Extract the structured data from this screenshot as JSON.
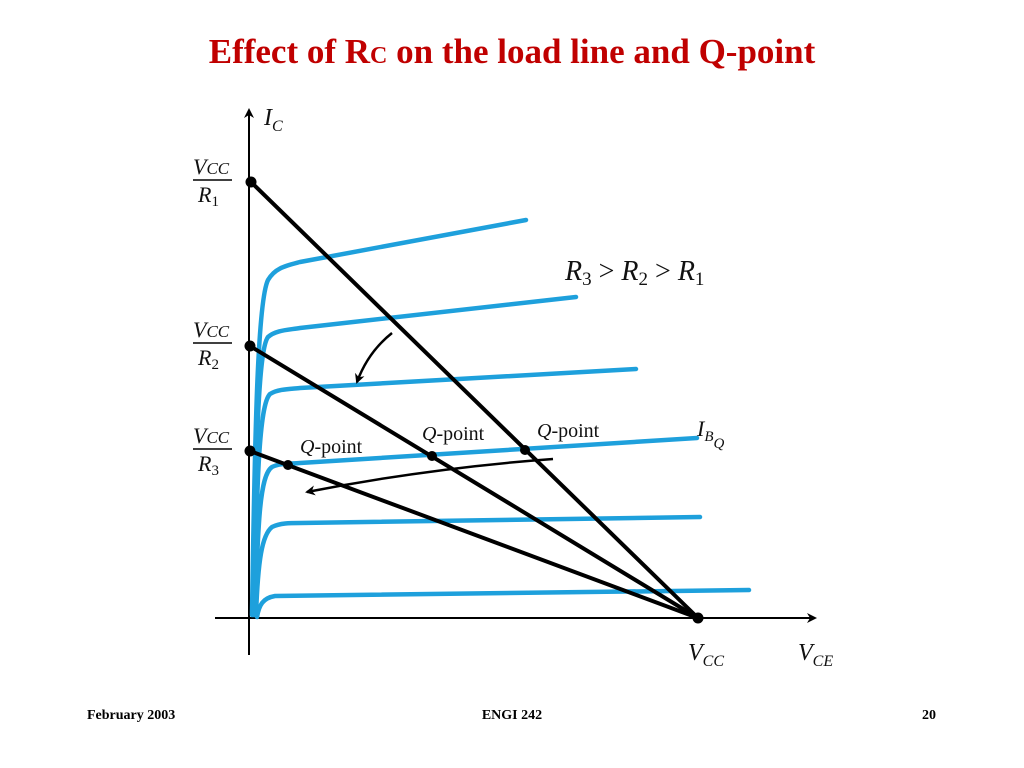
{
  "title": {
    "main_before": "Effect of R",
    "subscript": "C",
    "main_after": " on the load line and Q-point"
  },
  "diagram": {
    "y_axis_label": "I",
    "y_axis_sub": "C",
    "x_axis_label": "V",
    "x_axis_sub": "CE",
    "vcc_label": "V",
    "vcc_sub": "CC",
    "intercepts": [
      {
        "num": "V",
        "num_sub": "CC",
        "den": "R",
        "den_sub": "1"
      },
      {
        "num": "V",
        "num_sub": "CC",
        "den": "R",
        "den_sub": "2"
      },
      {
        "num": "V",
        "num_sub": "CC",
        "den": "R",
        "den_sub": "3"
      }
    ],
    "relation": {
      "a": "R",
      "a_sub": "3",
      "op1": " > ",
      "b": "R",
      "b_sub": "2",
      "op2": " > ",
      "c": "R",
      "c_sub": "1"
    },
    "qpoint_label": "Q",
    "qpoint_suffix": "-point",
    "ibq_label": "I",
    "ibq_sub": "B",
    "ibq_subsub": "Q",
    "colors": {
      "curves": "#1ea0dc",
      "lines": "#000000",
      "title": "#c00000"
    }
  },
  "footer": {
    "left": "February 2003",
    "center": "ENGI 242",
    "right": "20"
  }
}
